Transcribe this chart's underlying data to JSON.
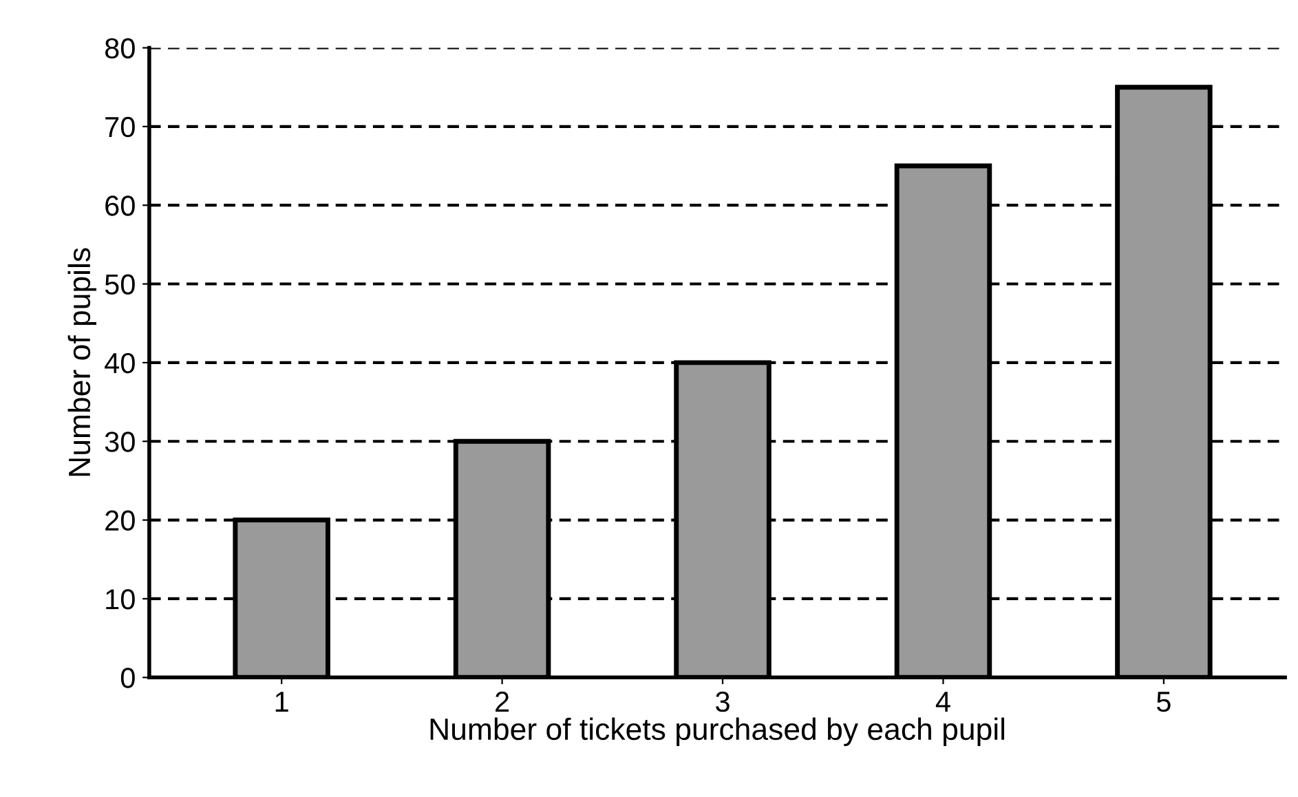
{
  "chart_data": {
    "type": "bar",
    "xlabel": "Number of tickets purchased by each pupil",
    "ylabel": "Number of pupils",
    "categories": [
      "1",
      "2",
      "3",
      "4",
      "5"
    ],
    "values": [
      20,
      30,
      40,
      65,
      75
    ],
    "color": "#9a9a9a",
    "ylim": [
      0,
      80
    ],
    "yticks": [
      0,
      10,
      20,
      30,
      40,
      50,
      60,
      70,
      80
    ],
    "grid": "y",
    "line_style": "dashed"
  }
}
